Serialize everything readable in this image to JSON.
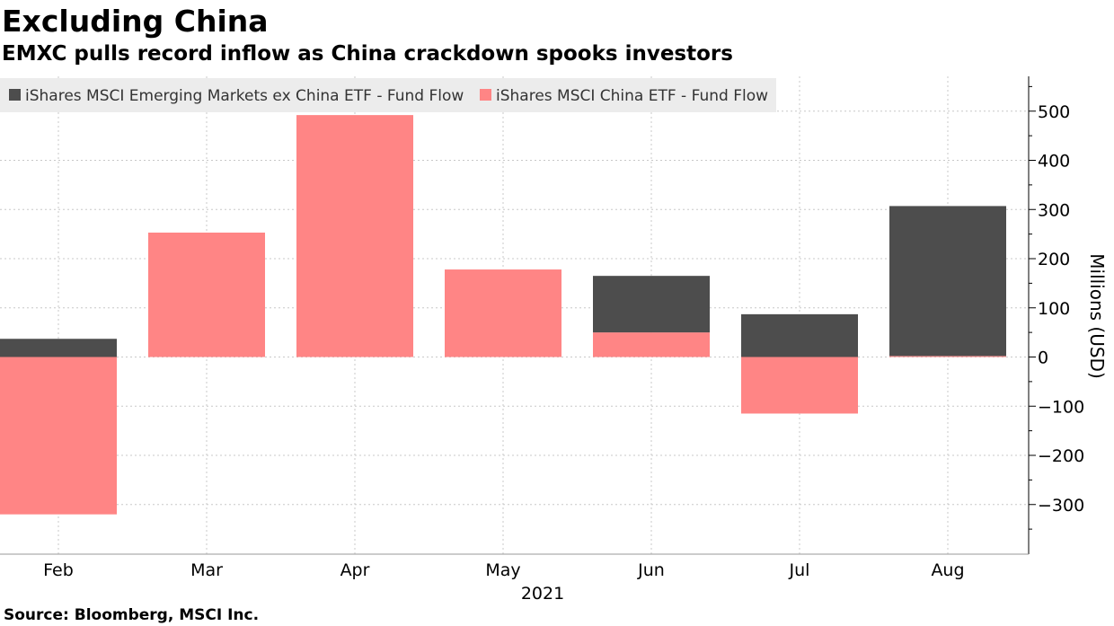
{
  "header": {
    "title": "Excluding China",
    "subtitle": "EMXC pulls record inflow as China crackdown spooks investors"
  },
  "footer": {
    "source": "Source: Bloomberg, MSCI Inc."
  },
  "chart_data": {
    "type": "bar",
    "title": "Excluding China",
    "subtitle": "EMXC pulls record inflow as China crackdown spooks investors",
    "categories": [
      "Feb",
      "Mar",
      "Apr",
      "May",
      "Jun",
      "Jul",
      "Aug"
    ],
    "xlabel": "2021",
    "ylabel": "Millions (USD)",
    "ylim": [
      -400,
      580
    ],
    "yticks": [
      -300,
      -200,
      -100,
      0,
      100,
      200,
      300,
      400,
      500
    ],
    "ytick_labels": [
      "-300",
      "-200",
      "-100",
      "0",
      "100",
      "200",
      "300",
      "400",
      "500"
    ],
    "y_axis_position": "right",
    "grid": true,
    "legend_position": "top-left",
    "series": [
      {
        "name": "iShares MSCI Emerging Markets ex China ETF - Fund Flow",
        "color": "#4d4d4d",
        "values": [
          37,
          0,
          0,
          0,
          115,
          87,
          305
        ]
      },
      {
        "name": "iShares MSCI China ETF - Fund Flow",
        "color": "#ff8585",
        "values": [
          -320,
          253,
          492,
          178,
          50,
          -115,
          2
        ]
      }
    ]
  }
}
